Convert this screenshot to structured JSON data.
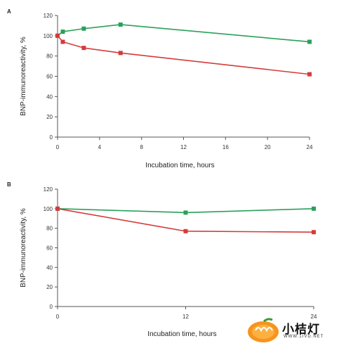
{
  "chart_data": [
    {
      "type": "line",
      "panel_label": "A",
      "xlabel": "Incubation time, hours",
      "ylabel": "BNP-immunoreactivity, %",
      "xlim": [
        0,
        24
      ],
      "ylim": [
        0,
        120
      ],
      "xticks": [
        0,
        4,
        8,
        12,
        16,
        20,
        24
      ],
      "yticks": [
        0,
        20,
        40,
        60,
        80,
        100,
        120
      ],
      "grid": false,
      "series": [
        {
          "color": "#2aa05a",
          "x": [
            0,
            0.5,
            2.5,
            6,
            24
          ],
          "y": [
            100,
            104,
            107,
            111,
            94
          ]
        },
        {
          "color": "#d63a3a",
          "x": [
            0,
            0.5,
            2.5,
            6,
            24
          ],
          "y": [
            100,
            94,
            88,
            83,
            62
          ]
        }
      ]
    },
    {
      "type": "line",
      "panel_label": "B",
      "xlabel": "Incubation time, hours",
      "ylabel": "BNP-immunoreactivity, %",
      "xlim": [
        0,
        24
      ],
      "ylim": [
        0,
        120
      ],
      "xticks": [
        0,
        12,
        24
      ],
      "xticklabels": [
        "0",
        "12",
        "24"
      ],
      "yticks": [
        0,
        20,
        40,
        60,
        80,
        100,
        120
      ],
      "grid": false,
      "series": [
        {
          "color": "#2aa05a",
          "x": [
            0,
            12,
            24
          ],
          "y": [
            100,
            96,
            100
          ]
        },
        {
          "color": "#d63a3a",
          "x": [
            0,
            12,
            24
          ],
          "y": [
            100,
            77,
            76
          ]
        }
      ]
    }
  ],
  "watermark": {
    "text": "小桔灯",
    "sub": "WWW.1IVD.NET"
  }
}
